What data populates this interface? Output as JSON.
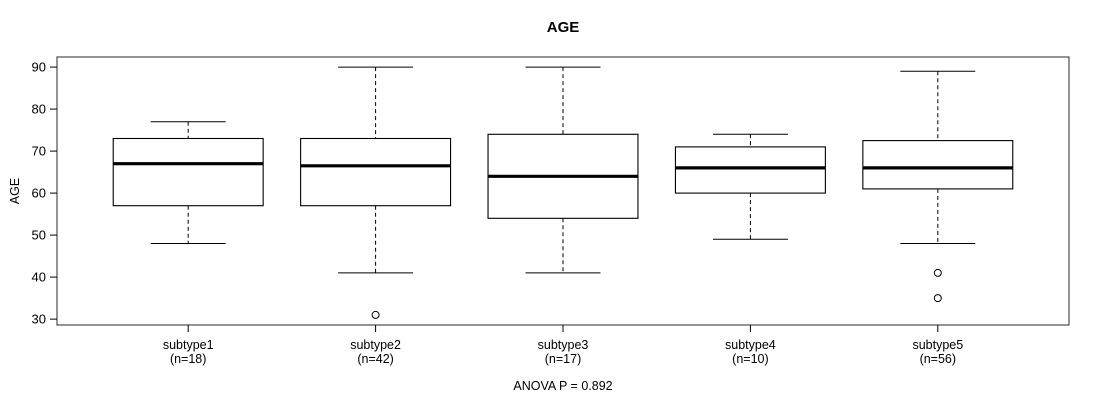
{
  "chart_data": {
    "type": "boxplot",
    "title": "AGE",
    "ylabel": "AGE",
    "note": "ANOVA P = 0.892",
    "yticks": [
      30,
      40,
      50,
      60,
      70,
      80,
      90
    ],
    "ylim": [
      28.6,
      92.4
    ],
    "grid": false,
    "frame": true,
    "legend": "none",
    "colors": {
      "line": "#000000",
      "box_fill": "#ffffff",
      "frame": "#4d4d4d",
      "background": "#ffffff"
    },
    "groups": [
      {
        "label": "subtype1",
        "n_label": "(n=18)",
        "whisker_low": 48,
        "q1": 57,
        "median": 67,
        "q3": 73,
        "whisker_high": 77,
        "outliers": []
      },
      {
        "label": "subtype2",
        "n_label": "(n=42)",
        "whisker_low": 41,
        "q1": 57,
        "median": 66.5,
        "q3": 73,
        "whisker_high": 90,
        "outliers": [
          31
        ]
      },
      {
        "label": "subtype3",
        "n_label": "(n=17)",
        "whisker_low": 41,
        "q1": 54,
        "median": 64,
        "q3": 74,
        "whisker_high": 90,
        "outliers": []
      },
      {
        "label": "subtype4",
        "n_label": "(n=10)",
        "whisker_low": 49,
        "q1": 60,
        "median": 66,
        "q3": 71,
        "whisker_high": 74,
        "outliers": []
      },
      {
        "label": "subtype5",
        "n_label": "(n=56)",
        "whisker_low": 48,
        "q1": 61,
        "median": 66,
        "q3": 72.5,
        "whisker_high": 89,
        "outliers": [
          41,
          35
        ]
      }
    ]
  }
}
